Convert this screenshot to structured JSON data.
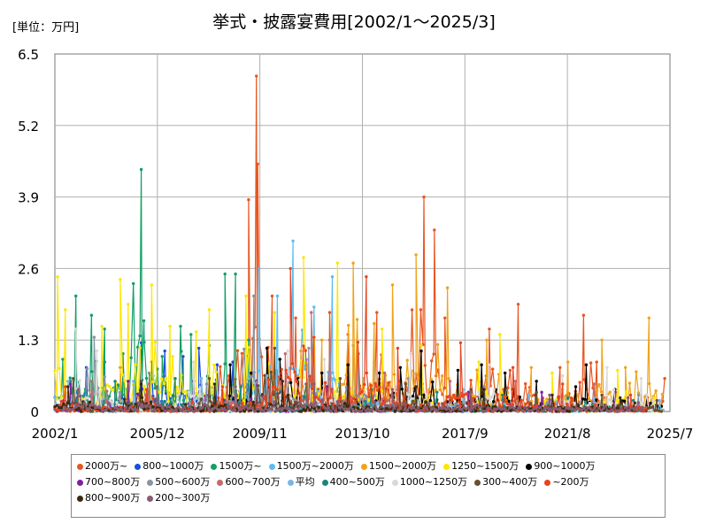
{
  "header": {
    "unit": "[単位：万円]",
    "title": "挙式・披露宴費用[2002/1～2025/3]"
  },
  "chart_data": {
    "type": "line",
    "title": "挙式・披露宴費用[2002/1～2025/3]",
    "ylabel": "[単位：万円]",
    "xlabel": "",
    "ylim": [
      0,
      6.5
    ],
    "yticks": [
      "0",
      "1.3",
      "2.6",
      "3.9",
      "5.2",
      "6.5"
    ],
    "xlim": [
      2002.0,
      2025.5
    ],
    "xtick_values": [
      2002.0,
      2005.917,
      2009.833,
      2013.75,
      2017.667,
      2021.583,
      2025.5
    ],
    "xticks": [
      "2002/1",
      "2005/12",
      "2009/11",
      "2013/10",
      "2017/9",
      "2021/8",
      "2025/7"
    ],
    "grid": true,
    "legend_position": "bottom",
    "series": [
      {
        "name": "2000万~",
        "color": "#e8561f",
        "peaks": [
          [
            2004.5,
            0.8
          ],
          [
            2009.4,
            3.85
          ],
          [
            2009.7,
            6.1
          ],
          [
            2009.75,
            4.5
          ],
          [
            2010.3,
            2.1
          ],
          [
            2011.2,
            1.7
          ],
          [
            2012.5,
            1.8
          ],
          [
            2013.2,
            1.4
          ],
          [
            2014.3,
            1.8
          ],
          [
            2016.1,
            3.9
          ],
          [
            2016.5,
            3.3
          ],
          [
            2016.9,
            1.7
          ],
          [
            2018.6,
            1.5
          ],
          [
            2019.7,
            1.95
          ],
          [
            2021.3,
            0.8
          ],
          [
            2022.2,
            1.75
          ],
          [
            2022.7,
            0.9
          ],
          [
            2025.3,
            0.6
          ]
        ]
      },
      {
        "name": "800~1000万",
        "color": "#1a4fd8",
        "peaks": [
          [
            2002.6,
            0.55
          ],
          [
            2003.2,
            0.8
          ],
          [
            2003.9,
            0.9
          ],
          [
            2004.6,
            1.05
          ],
          [
            2005.3,
            1.25
          ],
          [
            2005.7,
            0.9
          ],
          [
            2006.2,
            1.1
          ],
          [
            2006.9,
            1.0
          ],
          [
            2007.5,
            1.15
          ],
          [
            2008.2,
            0.85
          ],
          [
            2008.8,
            0.9
          ],
          [
            2009.4,
            0.55
          ],
          [
            2010.5,
            0.4
          ]
        ]
      },
      {
        "name": "1500万~",
        "color": "#12a065",
        "peaks": [
          [
            2002.3,
            0.95
          ],
          [
            2002.8,
            2.1
          ],
          [
            2003.4,
            1.75
          ],
          [
            2003.9,
            1.5
          ],
          [
            2004.6,
            1.05
          ],
          [
            2005.3,
            4.4
          ],
          [
            2005.4,
            1.65
          ],
          [
            2006.1,
            1.0
          ],
          [
            2006.8,
            1.55
          ],
          [
            2007.2,
            1.4
          ],
          [
            2007.9,
            1.2
          ],
          [
            2008.5,
            2.5
          ],
          [
            2008.9,
            2.5
          ],
          [
            2009.4,
            1.3
          ]
        ]
      },
      {
        "name": "1500万~2000万",
        "color": "#5bbcf0",
        "peaks": [
          [
            2009.8,
            2.6
          ],
          [
            2010.5,
            2.1
          ],
          [
            2011.1,
            3.1
          ],
          [
            2011.9,
            1.9
          ],
          [
            2012.6,
            2.45
          ],
          [
            2013.4,
            1.2
          ],
          [
            2014.2,
            0.9
          ]
        ]
      },
      {
        "name": "1500~2000万",
        "color": "#f0a31a",
        "peaks": [
          [
            2011.4,
            1.1
          ],
          [
            2012.2,
            1.3
          ],
          [
            2013.4,
            2.7
          ],
          [
            2014.2,
            1.6
          ],
          [
            2014.9,
            2.3
          ],
          [
            2015.8,
            2.85
          ],
          [
            2017.0,
            2.25
          ],
          [
            2018.5,
            1.3
          ],
          [
            2020.2,
            0.8
          ],
          [
            2021.6,
            0.9
          ],
          [
            2022.9,
            1.3
          ],
          [
            2023.8,
            0.8
          ],
          [
            2024.7,
            1.7
          ]
        ]
      },
      {
        "name": "1250~1500万",
        "color": "#fde600",
        "peaks": [
          [
            2002.1,
            2.45
          ],
          [
            2002.4,
            1.85
          ],
          [
            2003.8,
            1.55
          ],
          [
            2004.5,
            2.4
          ],
          [
            2004.8,
            1.95
          ],
          [
            2005.7,
            2.3
          ],
          [
            2006.4,
            1.55
          ],
          [
            2007.4,
            1.45
          ],
          [
            2007.9,
            1.85
          ],
          [
            2009.3,
            2.1
          ],
          [
            2010.4,
            1.8
          ],
          [
            2011.5,
            2.8
          ],
          [
            2012.8,
            2.7
          ],
          [
            2014.5,
            1.5
          ],
          [
            2016.0,
            1.2
          ],
          [
            2018.2,
            0.9
          ],
          [
            2019.0,
            1.4
          ],
          [
            2021.0,
            0.7
          ],
          [
            2023.5,
            0.75
          ],
          [
            2024.9,
            0.25
          ]
        ]
      },
      {
        "name": "900~1000万",
        "color": "#000000",
        "peaks": [
          [
            2008.7,
            0.85
          ],
          [
            2009.5,
            0.7
          ],
          [
            2010.1,
            1.15
          ],
          [
            2010.6,
            0.95
          ],
          [
            2011.3,
            0.6
          ],
          [
            2012.2,
            0.7
          ],
          [
            2013.2,
            0.85
          ],
          [
            2014.4,
            0.7
          ],
          [
            2015.2,
            0.8
          ],
          [
            2016.0,
            1.1
          ],
          [
            2017.4,
            0.75
          ],
          [
            2018.3,
            0.85
          ],
          [
            2019.2,
            0.7
          ],
          [
            2020.4,
            0.55
          ],
          [
            2021.9,
            0.45
          ],
          [
            2022.3,
            0.85
          ],
          [
            2023.4,
            0.4
          ],
          [
            2024.6,
            0.3
          ]
        ]
      },
      {
        "name": "700~800万",
        "color": "#7e1fa3",
        "peaks": [
          [
            2002.6,
            0.5
          ],
          [
            2004.8,
            0.55
          ],
          [
            2007.3,
            0.55
          ],
          [
            2009.7,
            0.55
          ],
          [
            2012.4,
            0.45
          ],
          [
            2015.1,
            0.4
          ],
          [
            2017.8,
            0.35
          ],
          [
            2020.6,
            0.35
          ],
          [
            2023.4,
            0.35
          ]
        ]
      },
      {
        "name": "500~600万",
        "color": "#8794a4",
        "peaks": [
          [
            2003.5,
            1.35
          ],
          [
            2005.6,
            0.7
          ],
          [
            2007.8,
            0.5
          ],
          [
            2009.6,
            2.1
          ],
          [
            2011.7,
            1.15
          ],
          [
            2013.6,
            1.05
          ],
          [
            2015.5,
            0.6
          ],
          [
            2018.4,
            0.45
          ],
          [
            2021.4,
            0.4
          ],
          [
            2024.3,
            0.3
          ]
        ]
      },
      {
        "name": "600~700万",
        "color": "#c36a6a",
        "peaks": [
          [
            2003.4,
            0.55
          ],
          [
            2005.6,
            0.5
          ],
          [
            2008.6,
            0.55
          ],
          [
            2010.8,
            1.05
          ],
          [
            2011.8,
            1.8
          ],
          [
            2012.5,
            1.3
          ],
          [
            2014.6,
            0.7
          ],
          [
            2017.1,
            0.55
          ],
          [
            2019.6,
            0.55
          ],
          [
            2022.6,
            0.5
          ]
        ]
      },
      {
        "name": "平均",
        "color": "#78b6e8",
        "peaks": [
          [
            2002.5,
            0.55
          ],
          [
            2005.0,
            0.55
          ],
          [
            2007.6,
            0.6
          ],
          [
            2010.1,
            0.65
          ],
          [
            2012.6,
            0.6
          ],
          [
            2015.1,
            0.45
          ],
          [
            2017.6,
            0.4
          ],
          [
            2020.1,
            0.3
          ],
          [
            2022.6,
            0.25
          ],
          [
            2025.1,
            0.2
          ]
        ]
      },
      {
        "name": "400~500万",
        "color": "#16867c",
        "peaks": [
          [
            2002.8,
            0.65
          ],
          [
            2004.3,
            0.55
          ],
          [
            2006.6,
            0.6
          ],
          [
            2009.1,
            0.45
          ],
          [
            2011.6,
            0.5
          ],
          [
            2014.1,
            0.4
          ],
          [
            2016.6,
            0.35
          ],
          [
            2019.1,
            0.3
          ],
          [
            2021.6,
            0.25
          ],
          [
            2024.1,
            0.2
          ]
        ]
      },
      {
        "name": "1000~1250万",
        "color": "#d9d9d9",
        "peaks": [
          [
            2002.8,
            1.5
          ],
          [
            2003.6,
            1.1
          ],
          [
            2007.3,
            0.9
          ],
          [
            2010.9,
            1.1
          ],
          [
            2012.3,
            0.95
          ],
          [
            2015.6,
            1.05
          ],
          [
            2018.6,
            0.85
          ],
          [
            2021.4,
            0.65
          ],
          [
            2023.1,
            0.8
          ],
          [
            2024.4,
            0.6
          ]
        ]
      },
      {
        "name": "300~400万",
        "color": "#6b4e32",
        "peaks": [
          [
            2002.7,
            0.6
          ],
          [
            2005.3,
            0.55
          ],
          [
            2007.9,
            0.6
          ],
          [
            2010.4,
            1.15
          ],
          [
            2012.9,
            0.6
          ],
          [
            2015.4,
            0.5
          ],
          [
            2017.9,
            0.4
          ],
          [
            2020.4,
            0.35
          ],
          [
            2022.9,
            0.3
          ],
          [
            2025.0,
            0.2
          ]
        ]
      },
      {
        "name": "~200万",
        "color": "#e8441f",
        "peaks": [
          [
            2002.4,
            0.45
          ],
          [
            2005.5,
            0.4
          ],
          [
            2008.4,
            0.45
          ],
          [
            2011.0,
            2.6
          ],
          [
            2011.9,
            1.35
          ],
          [
            2013.9,
            2.45
          ],
          [
            2015.1,
            1.15
          ],
          [
            2017.5,
            1.25
          ],
          [
            2019.5,
            0.8
          ],
          [
            2021.4,
            0.5
          ],
          [
            2024.0,
            0.3
          ]
        ]
      },
      {
        "name": "800~900万",
        "color": "#3a2a0e",
        "peaks": [
          [
            2002.5,
            0.45
          ],
          [
            2005.3,
            0.5
          ],
          [
            2008.1,
            0.5
          ],
          [
            2010.7,
            0.55
          ],
          [
            2013.2,
            0.5
          ],
          [
            2015.8,
            0.45
          ],
          [
            2018.4,
            0.4
          ],
          [
            2021.0,
            0.3
          ],
          [
            2023.6,
            0.25
          ]
        ]
      },
      {
        "name": "200~300万",
        "color": "#8a5a73",
        "peaks": [
          [
            2002.9,
            0.4
          ],
          [
            2005.9,
            0.45
          ],
          [
            2008.9,
            0.45
          ],
          [
            2011.9,
            0.5
          ],
          [
            2014.9,
            0.4
          ],
          [
            2017.9,
            0.35
          ],
          [
            2020.9,
            0.3
          ],
          [
            2023.9,
            0.25
          ]
        ]
      }
    ]
  }
}
